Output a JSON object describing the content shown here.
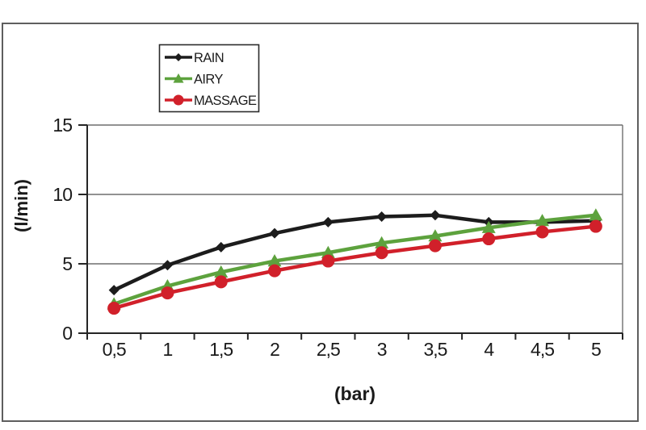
{
  "chart_data": {
    "type": "line",
    "title": "",
    "xlabel": "(bar)",
    "ylabel": "(l/min)",
    "categories": [
      "0,5",
      "1",
      "1,5",
      "2",
      "2,5",
      "3",
      "3,5",
      "4",
      "4,5",
      "5"
    ],
    "series": [
      {
        "name": "RAIN",
        "marker": "diamond",
        "color": "#1c1c1c",
        "values": [
          3.1,
          4.9,
          6.2,
          7.2,
          8.0,
          8.4,
          8.5,
          8.0,
          8.0,
          8.1
        ]
      },
      {
        "name": "AIRY",
        "marker": "triangle",
        "color": "#5da23d",
        "values": [
          2.1,
          3.4,
          4.4,
          5.2,
          5.8,
          6.5,
          7.0,
          7.6,
          8.1,
          8.5
        ]
      },
      {
        "name": "MASSAGE",
        "marker": "circle",
        "color": "#d1202a",
        "values": [
          1.8,
          2.9,
          3.7,
          4.5,
          5.2,
          5.8,
          6.3,
          6.8,
          7.3,
          7.7
        ]
      }
    ],
    "ylim": [
      0,
      15
    ],
    "yticks": [
      0,
      5,
      10,
      15
    ],
    "grid": true,
    "legend_position": "top-left-inside",
    "legend_order": [
      "RAIN",
      "AIRY",
      "MASSAGE"
    ],
    "colors": {
      "frame_border": "#5e5e5e",
      "legend_border": "#2b2b2b",
      "gridline": "#6f6f6f",
      "axis": "#252525",
      "text": "#1a1a1a",
      "background": "#ffffff"
    }
  }
}
